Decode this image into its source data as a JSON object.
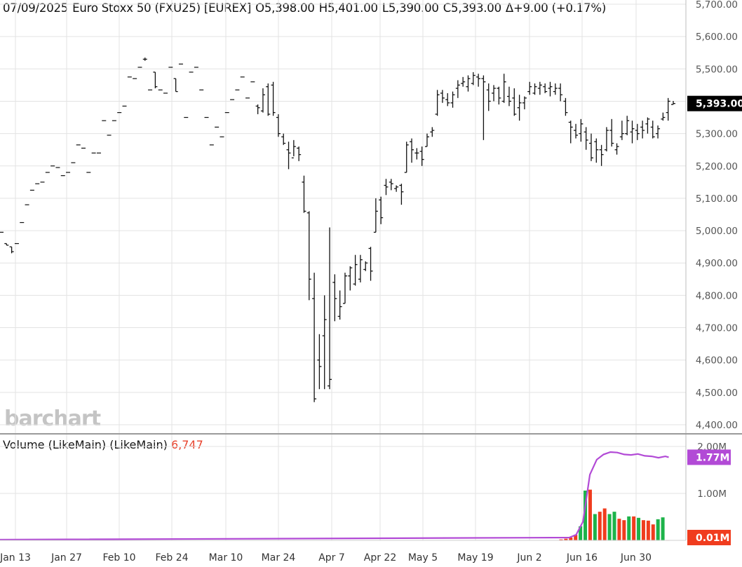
{
  "header": {
    "date": "07/09/2025",
    "instrument": "Euro Stoxx 50 (FXU25) [EUREX]",
    "open": "O5,398.00",
    "high": "H5,401.00",
    "low": "L5,390.00",
    "close": "C5,393.00",
    "change": "Δ+9.00 (+0.17%)"
  },
  "volume_header": {
    "label": "Volume (LikeMain)  (LikeMain)",
    "value": "6,747"
  },
  "watermark": "barchart",
  "price_badge": "5,393.00",
  "volume_badge_ma": "1.77M",
  "volume_badge_last": "0.01M",
  "colors": {
    "up_volume": "#1db34a",
    "down_volume": "#f03c1e",
    "ma_line": "#b24ad6",
    "badge_ma": "#b24ad6",
    "badge_last": "#f03c1e",
    "badge_price": "#000000",
    "grid": "#e3e3e3"
  },
  "chart_data": [
    {
      "type": "ohlc",
      "title": "07/09/2025 Euro Stoxx 50 (FXU25) [EUREX]",
      "ylim": [
        4400,
        5700
      ],
      "y_ticks": [
        "5,700.00",
        "5,600.00",
        "5,500.00",
        "5,400.00",
        "5,300.00",
        "5,200.00",
        "5,100.00",
        "5,000.00",
        "4,900.00",
        "4,800.00",
        "4,700.00",
        "4,600.00",
        "4,500.00",
        "4,400.00"
      ],
      "x_tick_labels": [
        "Jan 13",
        "Jan 27",
        "Feb 10",
        "Feb 24",
        "Mar 10",
        "Mar 24",
        "Apr 7",
        "Apr 22",
        "May 5",
        "May 19",
        "Jun 2",
        "Jun 16",
        "Jun 30"
      ],
      "grid": true,
      "bars": [
        [
          4995,
          4995,
          4995,
          4995
        ],
        [
          4960,
          4960,
          4955,
          4955
        ],
        [
          4950,
          4950,
          4930,
          4935
        ],
        [
          4960,
          4960,
          4960,
          4960
        ],
        [
          5025,
          5025,
          5025,
          5025
        ],
        [
          5080,
          5080,
          5080,
          5080
        ],
        [
          5125,
          5125,
          5125,
          5125
        ],
        [
          5145,
          5145,
          5145,
          5145
        ],
        [
          5150,
          5150,
          5150,
          5150
        ],
        [
          5180,
          5180,
          5180,
          5180
        ],
        [
          5200,
          5200,
          5200,
          5200
        ],
        [
          5195,
          5195,
          5195,
          5195
        ],
        [
          5170,
          5170,
          5170,
          5170
        ],
        [
          5180,
          5180,
          5180,
          5180
        ],
        [
          5210,
          5210,
          5210,
          5210
        ],
        [
          5265,
          5265,
          5265,
          5265
        ],
        [
          5255,
          5255,
          5255,
          5255
        ],
        [
          5180,
          5180,
          5180,
          5180
        ],
        [
          5240,
          5240,
          5240,
          5240
        ],
        [
          5240,
          5240,
          5240,
          5240
        ],
        [
          5340,
          5340,
          5340,
          5340
        ],
        [
          5295,
          5295,
          5295,
          5295
        ],
        [
          5340,
          5340,
          5340,
          5340
        ],
        [
          5365,
          5365,
          5365,
          5365
        ],
        [
          5385,
          5385,
          5385,
          5385
        ],
        [
          5475,
          5475,
          5475,
          5475
        ],
        [
          5470,
          5470,
          5470,
          5470
        ],
        [
          5505,
          5505,
          5505,
          5505
        ],
        [
          5530,
          5535,
          5525,
          5530
        ],
        [
          5435,
          5435,
          5435,
          5435
        ],
        [
          5490,
          5490,
          5440,
          5445
        ],
        [
          5435,
          5435,
          5435,
          5435
        ],
        [
          5425,
          5425,
          5425,
          5425
        ],
        [
          5505,
          5505,
          5505,
          5505
        ],
        [
          5470,
          5470,
          5430,
          5430
        ],
        [
          5515,
          5515,
          5515,
          5515
        ],
        [
          5350,
          5350,
          5350,
          5350
        ],
        [
          5490,
          5490,
          5490,
          5490
        ],
        [
          5505,
          5505,
          5505,
          5505
        ],
        [
          5435,
          5435,
          5435,
          5435
        ],
        [
          5350,
          5350,
          5350,
          5350
        ],
        [
          5265,
          5265,
          5265,
          5265
        ],
        [
          5320,
          5320,
          5320,
          5320
        ],
        [
          5290,
          5290,
          5290,
          5290
        ],
        [
          5365,
          5365,
          5365,
          5365
        ],
        [
          5405,
          5405,
          5405,
          5405
        ],
        [
          5435,
          5435,
          5435,
          5435
        ],
        [
          5475,
          5475,
          5475,
          5475
        ],
        [
          5410,
          5410,
          5410,
          5410
        ],
        [
          5460,
          5460,
          5460,
          5460
        ],
        [
          5385,
          5390,
          5360,
          5380
        ],
        [
          5370,
          5440,
          5365,
          5420
        ],
        [
          5445,
          5455,
          5355,
          5360
        ],
        [
          5450,
          5460,
          5355,
          5365
        ],
        [
          5350,
          5360,
          5290,
          5300
        ],
        [
          5290,
          5300,
          5265,
          5270
        ],
        [
          5250,
          5275,
          5190,
          5240
        ],
        [
          5225,
          5280,
          5230,
          5260
        ],
        [
          5255,
          5260,
          5215,
          5235
        ],
        [
          5150,
          5170,
          5055,
          5060
        ],
        [
          5055,
          5060,
          4785,
          4850
        ],
        [
          4790,
          4870,
          4470,
          4480
        ],
        [
          4600,
          4680,
          4510,
          4580
        ],
        [
          4675,
          4800,
          4510,
          4725
        ],
        [
          4520,
          5010,
          4510,
          4540
        ],
        [
          4840,
          4865,
          4720,
          4790
        ],
        [
          4735,
          4815,
          4725,
          4765
        ],
        [
          4775,
          4870,
          4775,
          4860
        ],
        [
          4860,
          4890,
          4815,
          4885
        ],
        [
          4835,
          4925,
          4830,
          4895
        ],
        [
          4850,
          4925,
          4840,
          4910
        ],
        [
          4880,
          4905,
          4875,
          4900
        ],
        [
          4945,
          4950,
          4845,
          4875
        ],
        [
          4995,
          5100,
          4995,
          5060
        ],
        [
          5095,
          5105,
          5020,
          5040
        ],
        [
          5140,
          5160,
          5110,
          5135
        ],
        [
          5150,
          5160,
          5125,
          5145
        ],
        [
          5130,
          5140,
          5120,
          5135
        ],
        [
          5140,
          5145,
          5080,
          5120
        ],
        [
          5180,
          5275,
          5180,
          5265
        ],
        [
          5275,
          5285,
          5210,
          5250
        ],
        [
          5240,
          5255,
          5220,
          5240
        ],
        [
          5245,
          5260,
          5200,
          5220
        ],
        [
          5260,
          5300,
          5260,
          5290
        ],
        [
          5305,
          5320,
          5290,
          5310
        ],
        [
          5360,
          5435,
          5355,
          5420
        ],
        [
          5425,
          5435,
          5395,
          5410
        ],
        [
          5405,
          5425,
          5385,
          5395
        ],
        [
          5395,
          5430,
          5380,
          5420
        ],
        [
          5440,
          5465,
          5410,
          5450
        ],
        [
          5455,
          5475,
          5445,
          5460
        ],
        [
          5445,
          5480,
          5430,
          5470
        ],
        [
          5455,
          5490,
          5450,
          5480
        ],
        [
          5475,
          5485,
          5445,
          5470
        ],
        [
          5470,
          5480,
          5280,
          5460
        ],
        [
          5435,
          5455,
          5370,
          5400
        ],
        [
          5425,
          5450,
          5400,
          5440
        ],
        [
          5440,
          5445,
          5390,
          5410
        ],
        [
          5400,
          5485,
          5395,
          5460
        ],
        [
          5415,
          5445,
          5385,
          5400
        ],
        [
          5410,
          5440,
          5355,
          5360
        ],
        [
          5380,
          5420,
          5340,
          5395
        ],
        [
          5395,
          5415,
          5375,
          5410
        ],
        [
          5430,
          5460,
          5420,
          5445
        ],
        [
          5425,
          5455,
          5420,
          5445
        ],
        [
          5440,
          5460,
          5420,
          5450
        ],
        [
          5445,
          5455,
          5425,
          5430
        ],
        [
          5440,
          5460,
          5415,
          5445
        ],
        [
          5430,
          5455,
          5420,
          5440
        ],
        [
          5440,
          5455,
          5400,
          5420
        ],
        [
          5400,
          5410,
          5355,
          5365
        ],
        [
          5335,
          5340,
          5270,
          5320
        ],
        [
          5310,
          5330,
          5285,
          5295
        ],
        [
          5300,
          5345,
          5275,
          5330
        ],
        [
          5305,
          5320,
          5250,
          5280
        ],
        [
          5270,
          5300,
          5215,
          5225
        ],
        [
          5275,
          5285,
          5210,
          5250
        ],
        [
          5250,
          5265,
          5200,
          5235
        ],
        [
          5250,
          5320,
          5245,
          5310
        ],
        [
          5310,
          5345,
          5260,
          5270
        ],
        [
          5250,
          5270,
          5235,
          5260
        ],
        [
          5290,
          5340,
          5280,
          5300
        ],
        [
          5300,
          5355,
          5295,
          5340
        ],
        [
          5305,
          5340,
          5270,
          5315
        ],
        [
          5310,
          5330,
          5280,
          5300
        ],
        [
          5320,
          5340,
          5285,
          5310
        ],
        [
          5330,
          5350,
          5300,
          5345
        ],
        [
          5320,
          5340,
          5285,
          5290
        ],
        [
          5300,
          5325,
          5285,
          5315
        ],
        [
          5345,
          5365,
          5340,
          5350
        ],
        [
          5365,
          5410,
          5340,
          5400
        ],
        [
          5390,
          5401,
          5390,
          5393
        ]
      ]
    },
    {
      "type": "bar",
      "title": "Volume (LikeMain)  (LikeMain)",
      "ylim": [
        0,
        2000000
      ],
      "y_ticks": [
        "2.00M",
        "1.00M"
      ],
      "volume_bars": [
        {
          "v": 20000,
          "c": "down"
        },
        {
          "v": 35000,
          "c": "down"
        },
        {
          "v": 60000,
          "c": "down"
        },
        {
          "v": 120000,
          "c": "down"
        },
        {
          "v": 300000,
          "c": "green"
        },
        {
          "v": 1060000,
          "c": "green"
        },
        {
          "v": 1080000,
          "c": "down"
        },
        {
          "v": 560000,
          "c": "green"
        },
        {
          "v": 610000,
          "c": "down"
        },
        {
          "v": 680000,
          "c": "down"
        },
        {
          "v": 560000,
          "c": "green"
        },
        {
          "v": 610000,
          "c": "green"
        },
        {
          "v": 460000,
          "c": "down"
        },
        {
          "v": 430000,
          "c": "down"
        },
        {
          "v": 510000,
          "c": "green"
        },
        {
          "v": 510000,
          "c": "down"
        },
        {
          "v": 480000,
          "c": "green"
        },
        {
          "v": 430000,
          "c": "down"
        },
        {
          "v": 420000,
          "c": "down"
        },
        {
          "v": 340000,
          "c": "down"
        },
        {
          "v": 450000,
          "c": "green"
        },
        {
          "v": 490000,
          "c": "green"
        },
        {
          "v": 6747,
          "c": "down"
        }
      ],
      "moving_average": [
        {
          "t": 0,
          "v": 15000
        },
        {
          "t": 0.83,
          "v": 60000
        },
        {
          "t": 0.84,
          "v": 120000
        },
        {
          "t": 0.85,
          "v": 400000
        },
        {
          "t": 0.86,
          "v": 1400000
        },
        {
          "t": 0.87,
          "v": 1720000
        },
        {
          "t": 0.88,
          "v": 1830000
        },
        {
          "t": 0.89,
          "v": 1880000
        },
        {
          "t": 0.9,
          "v": 1870000
        },
        {
          "t": 0.91,
          "v": 1830000
        },
        {
          "t": 0.92,
          "v": 1820000
        },
        {
          "t": 0.93,
          "v": 1840000
        },
        {
          "t": 0.94,
          "v": 1800000
        },
        {
          "t": 0.95,
          "v": 1790000
        },
        {
          "t": 0.96,
          "v": 1760000
        },
        {
          "t": 0.97,
          "v": 1790000
        },
        {
          "t": 0.975,
          "v": 1770000
        }
      ]
    }
  ]
}
